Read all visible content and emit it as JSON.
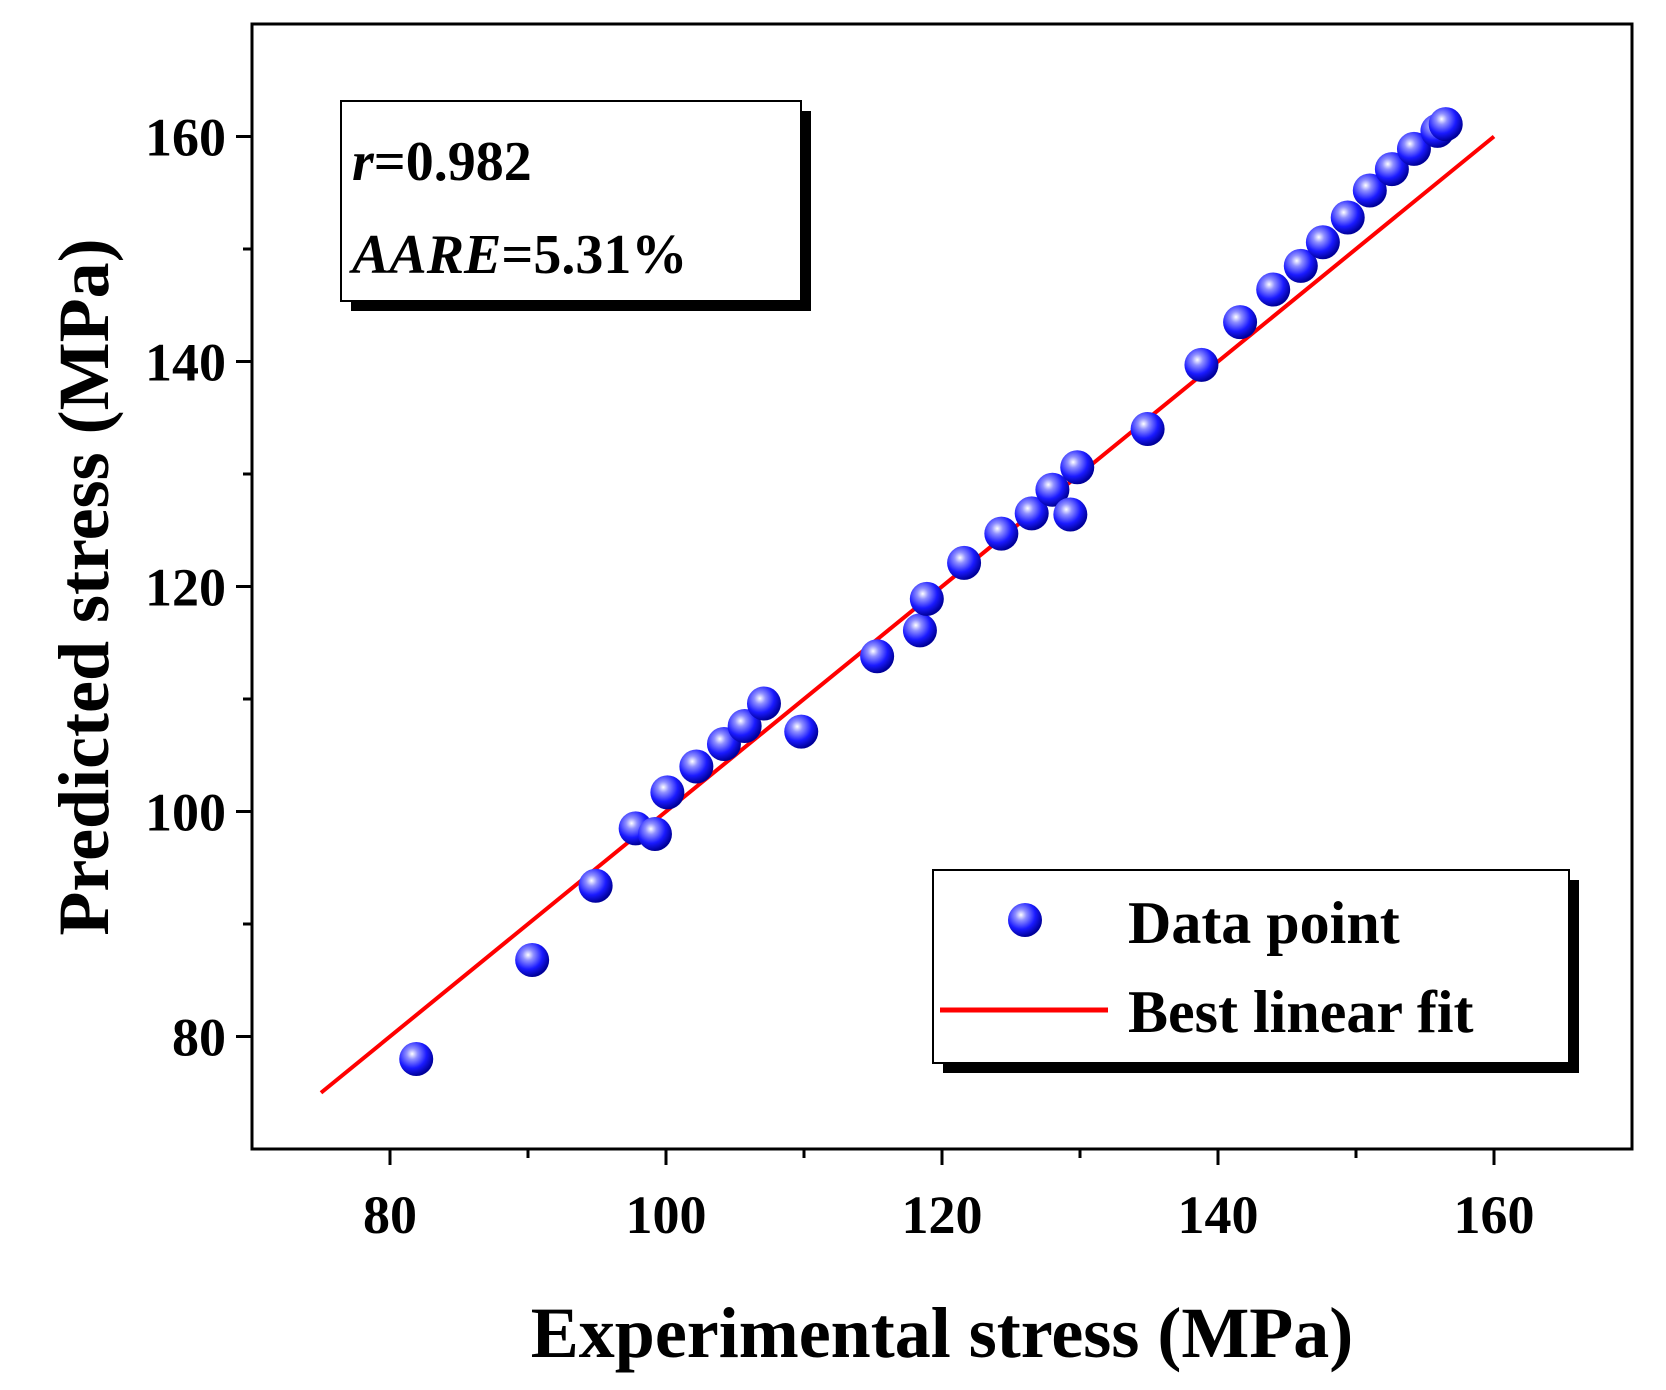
{
  "chart_data": {
    "type": "scatter",
    "xlabel": "Experimental stress (MPa)",
    "ylabel": "Predicted stress (MPa)",
    "xlim": [
      70,
      170
    ],
    "ylim": [
      70,
      170
    ],
    "xticks": [
      80,
      100,
      120,
      140,
      160
    ],
    "yticks": [
      80,
      100,
      120,
      140,
      160
    ],
    "xtick_labels": [
      "80",
      "100",
      "120",
      "140",
      "160"
    ],
    "ytick_labels": [
      "80",
      "100",
      "120",
      "140",
      "160"
    ],
    "grid": false,
    "series": [
      {
        "name": "Data point",
        "type": "scatter",
        "color": "#1a1aff",
        "x": [
          81.9,
          90.3,
          94.9,
          97.8,
          99.2,
          100.1,
          102.2,
          104.2,
          105.7,
          107.1,
          109.8,
          115.3,
          118.4,
          118.9,
          121.6,
          124.3,
          126.5,
          128.0,
          129.3,
          129.8,
          134.9,
          138.8,
          141.6,
          144.0,
          146.0,
          147.6,
          149.4,
          151.0,
          152.6,
          154.2,
          155.9,
          156.5
        ],
        "y": [
          78.0,
          86.8,
          93.4,
          98.5,
          98.0,
          101.7,
          104.0,
          106.0,
          107.6,
          109.6,
          107.1,
          113.8,
          116.1,
          118.9,
          122.1,
          124.7,
          126.5,
          128.6,
          126.4,
          130.6,
          134.0,
          139.7,
          143.5,
          146.4,
          148.5,
          150.6,
          152.8,
          155.2,
          157.1,
          158.9,
          160.5,
          161.1
        ]
      },
      {
        "name": "Best linear fit",
        "type": "line",
        "color": "#ff0000",
        "x": [
          75,
          160
        ],
        "y": [
          75,
          160
        ]
      }
    ],
    "annotations": {
      "r_label": "r",
      "r_value": "=0.982",
      "aare_label": "AARE",
      "aare_value": "=5.31%"
    },
    "legend": {
      "position": "bottom-right",
      "entries": [
        "Data point",
        "Best linear fit"
      ]
    }
  }
}
